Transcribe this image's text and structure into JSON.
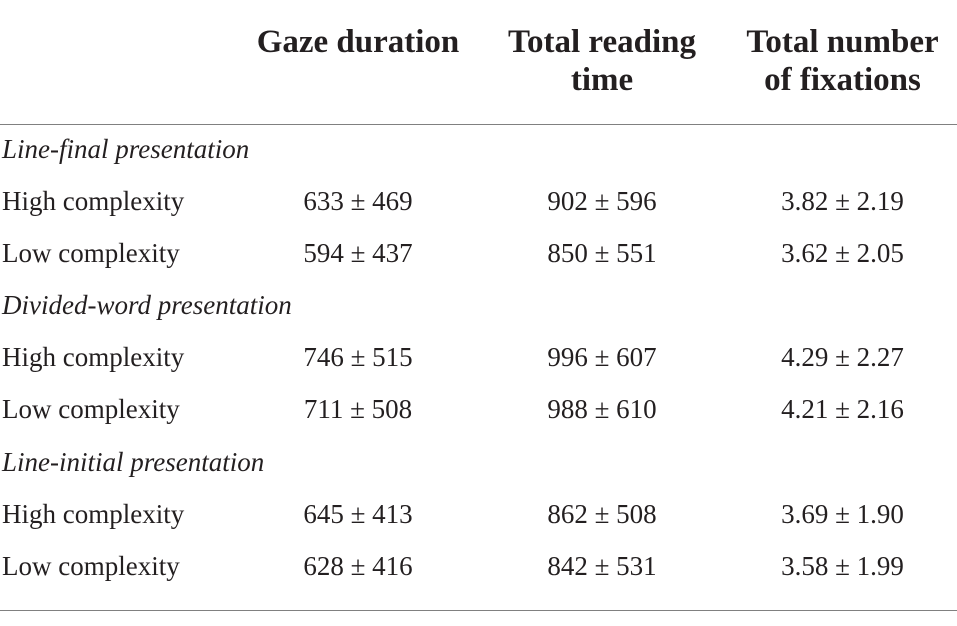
{
  "headers": {
    "gaze_duration": "Gaze duration",
    "total_reading_time_line1": "Total reading",
    "total_reading_time_line2": "time",
    "total_fixations_line1": "Total number",
    "total_fixations_line2": "of fixations"
  },
  "sections": [
    {
      "title": "Line-final presentation",
      "rows": [
        {
          "label": "High complexity",
          "gaze": "633 ± 469",
          "trt": "902 ± 596",
          "fix": "3.82 ± 2.19"
        },
        {
          "label": "Low complexity",
          "gaze": "594 ± 437",
          "trt": "850 ± 551",
          "fix": "3.62 ± 2.05"
        }
      ]
    },
    {
      "title": "Divided-word presentation",
      "rows": [
        {
          "label": "High complexity",
          "gaze": "746 ± 515",
          "trt": "996 ± 607",
          "fix": "4.29 ± 2.27"
        },
        {
          "label": "Low complexity",
          "gaze": "711 ± 508",
          "trt": "988 ± 610",
          "fix": "4.21 ± 2.16"
        }
      ]
    },
    {
      "title": "Line-initial presentation",
      "rows": [
        {
          "label": "High complexity",
          "gaze": "645 ± 413",
          "trt": "862 ± 508",
          "fix": "3.69 ± 1.90"
        },
        {
          "label": "Low complexity",
          "gaze": "628 ± 416",
          "trt": "842 ± 531",
          "fix": "3.58 ± 1.99"
        }
      ]
    }
  ]
}
